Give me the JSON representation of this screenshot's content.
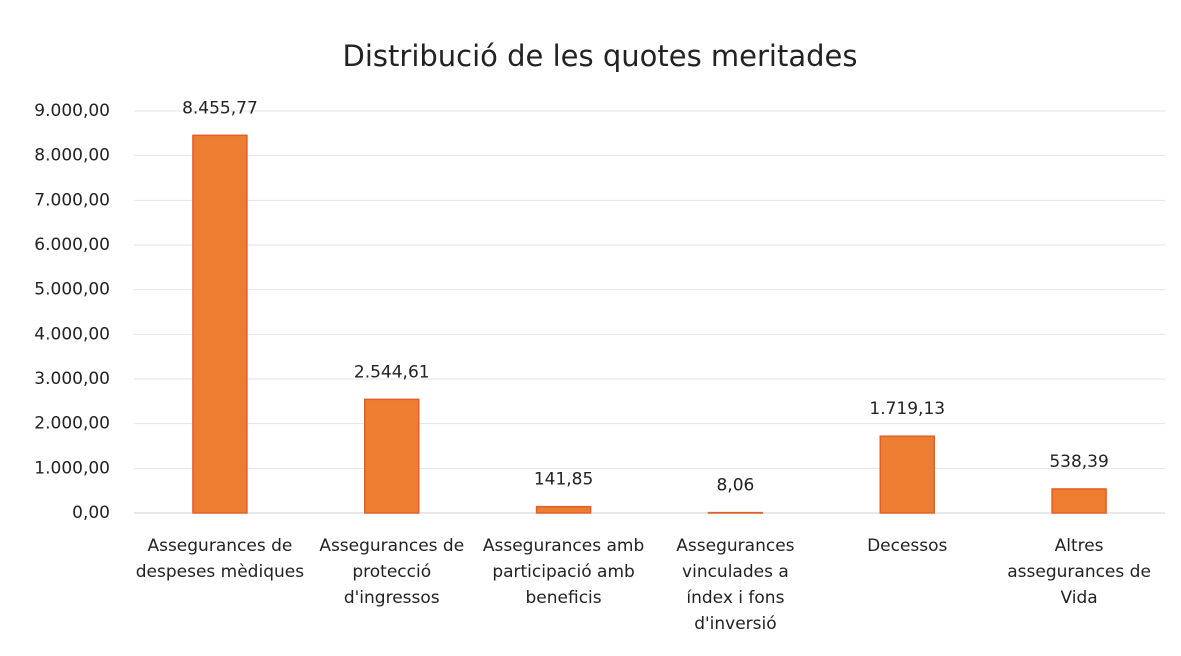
{
  "chart_data": {
    "type": "bar",
    "title": "Distribució de les quotes meritades",
    "categories": [
      "Assegurances de despeses mèdiques",
      "Assegurances de protecció d'ingressos",
      "Assegurances amb participació amb beneficis",
      "Assegurances vinculades a índex i fons d'inversió",
      "Decessos",
      "Altres assegurances de Vida"
    ],
    "values": [
      8455.77,
      2544.61,
      141.85,
      8.06,
      1719.13,
      538.39
    ],
    "value_labels": [
      "8.455,77",
      "2.544,61",
      "141,85",
      "8,06",
      "1.719,13",
      "538,39"
    ],
    "color": "#ed7d31",
    "ylim": [
      0,
      9000
    ],
    "yticks": [
      {
        "value": 0,
        "label": "0,00"
      },
      {
        "value": 1000,
        "label": "1.000,00"
      },
      {
        "value": 2000,
        "label": "2.000,00"
      },
      {
        "value": 3000,
        "label": "3.000,00"
      },
      {
        "value": 4000,
        "label": "4.000,00"
      },
      {
        "value": 5000,
        "label": "5.000,00"
      },
      {
        "value": 6000,
        "label": "6.000,00"
      },
      {
        "value": 7000,
        "label": "7.000,00"
      },
      {
        "value": 8000,
        "label": "8.000,00"
      },
      {
        "value": 9000,
        "label": "9.000,00"
      }
    ],
    "grid": true
  }
}
